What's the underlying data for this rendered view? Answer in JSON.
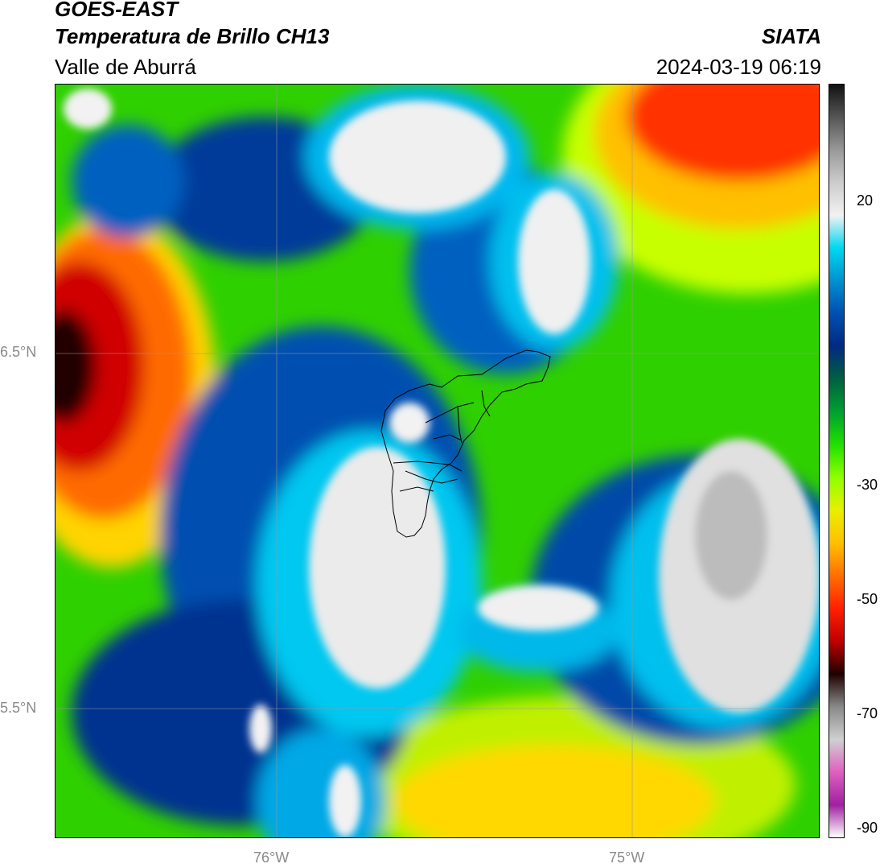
{
  "header": {
    "satellite": "GOES-EAST",
    "product": "Temperatura de Brillo CH13",
    "region": "Valle de Aburrá",
    "agency": "SIATA",
    "timestamp": "2024-03-19 06:19"
  },
  "map": {
    "lat_labels": [
      "6.5°N",
      "5.5°N"
    ],
    "lon_labels": [
      "76°W",
      "75°W"
    ]
  },
  "colorbar": {
    "ticks": [
      "20",
      "-30",
      "-50",
      "-70",
      "-90"
    ],
    "colors": [
      "#111111",
      "#555555",
      "#999999",
      "#cccccc",
      "#f2f2f2",
      "#00d8f0",
      "#0090d0",
      "#0050b0",
      "#002a80",
      "#006040",
      "#00a030",
      "#20e000",
      "#90ff00",
      "#e8f000",
      "#ffc000",
      "#ff7000",
      "#ff2000",
      "#c00000",
      "#200000",
      "#888888",
      "#d0d0d0",
      "#e060c0",
      "#a020a0",
      "#ffffff"
    ]
  }
}
